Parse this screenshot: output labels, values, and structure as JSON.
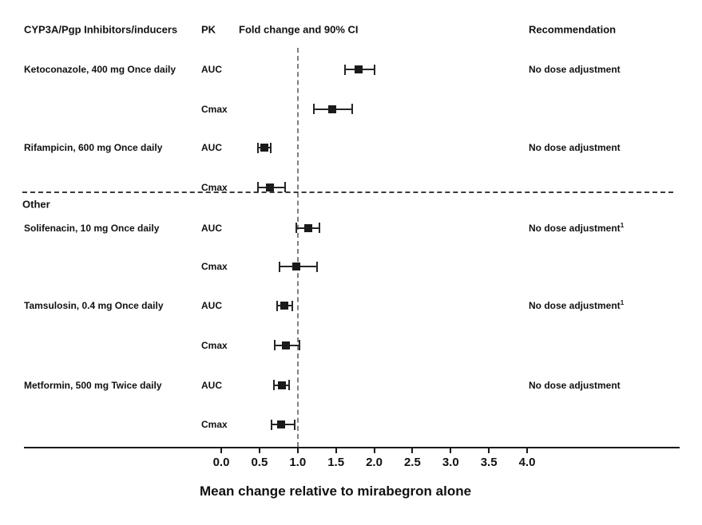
{
  "header": {
    "col_drug": "CYP3A/Pgp Inhibitors/inducers",
    "col_pk": "PK",
    "col_plot": "Fold change and 90% CI",
    "col_rec": "Recommendation"
  },
  "section_divider_label": "Other",
  "axis": {
    "tick_labels": [
      "0.0",
      "0.5",
      "1.0",
      "1.5",
      "2.0",
      "2.5",
      "3.0",
      "3.5",
      "4.0"
    ],
    "title": "Mean change relative to mirabegron alone"
  },
  "colors": {
    "marker": "#1a1a1a",
    "error_bar": "#262626",
    "reference_line": "#7f7f7f",
    "divider_line": "#3a3a3a",
    "text": "#111111"
  },
  "chart_data": {
    "type": "forest",
    "title": "Fold change and 90% CI",
    "xlabel": "Mean change relative to mirabegron alone",
    "x_ticks": [
      0,
      0.5,
      1,
      1.5,
      2,
      2.5,
      3,
      3.5,
      4
    ],
    "xlim": [
      0,
      4.4
    ],
    "reference_line_x": 1.0,
    "grid": false,
    "sections": [
      "CYP3A/Pgp Inhibitors/inducers",
      "Other"
    ],
    "groups": [
      {
        "section": "CYP3A/Pgp Inhibitors/inducers",
        "drug": "Ketoconazole, 400 mg Once daily",
        "recommendation": "No dose adjustment",
        "footnote": "",
        "measures": [
          {
            "pk": "AUC",
            "value": 1.8,
            "ci_low": 1.62,
            "ci_high": 2.0
          },
          {
            "pk": "Cmax",
            "value": 1.45,
            "ci_low": 1.21,
            "ci_high": 1.71
          }
        ]
      },
      {
        "section": "CYP3A/Pgp Inhibitors/inducers",
        "drug": "Rifampicin, 600 mg Once daily",
        "recommendation": "No dose adjustment",
        "footnote": "",
        "measures": [
          {
            "pk": "AUC",
            "value": 0.56,
            "ci_low": 0.48,
            "ci_high": 0.65
          },
          {
            "pk": "Cmax",
            "value": 0.64,
            "ci_low": 0.48,
            "ci_high": 0.84
          }
        ]
      },
      {
        "section": "Other",
        "drug": "Solifenacin, 10 mg Once daily",
        "recommendation": "No dose adjustment",
        "footnote": "1",
        "measures": [
          {
            "pk": "AUC",
            "value": 1.14,
            "ci_low": 0.98,
            "ci_high": 1.28
          },
          {
            "pk": "Cmax",
            "value": 0.98,
            "ci_low": 0.76,
            "ci_high": 1.25
          }
        ]
      },
      {
        "section": "Other",
        "drug": "Tamsulosin, 0.4 mg Once daily",
        "recommendation": "No dose adjustment",
        "footnote": "1",
        "measures": [
          {
            "pk": "AUC",
            "value": 0.83,
            "ci_low": 0.73,
            "ci_high": 0.93
          },
          {
            "pk": "Cmax",
            "value": 0.85,
            "ci_low": 0.7,
            "ci_high": 1.02
          }
        ]
      },
      {
        "section": "Other",
        "drug": "Metformin, 500 mg Twice daily",
        "recommendation": "No dose adjustment",
        "footnote": "",
        "measures": [
          {
            "pk": "AUC",
            "value": 0.79,
            "ci_low": 0.69,
            "ci_high": 0.89
          },
          {
            "pk": "Cmax",
            "value": 0.78,
            "ci_low": 0.66,
            "ci_high": 0.96
          }
        ]
      }
    ]
  }
}
